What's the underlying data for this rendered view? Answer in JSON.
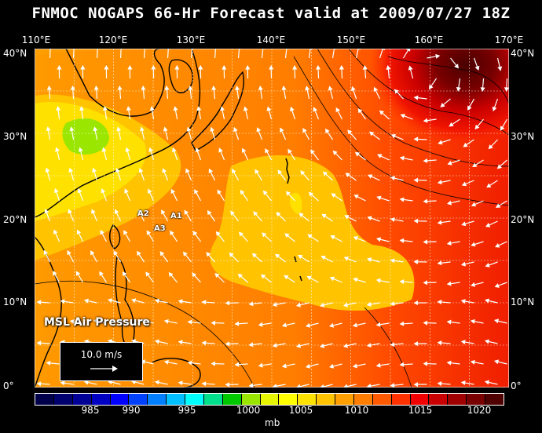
{
  "title": "FNMOC NOGAPS 66-Hr Forecast valid at 2009/07/27 18Z",
  "lon_labels": [
    "110°E",
    "120°E",
    "130°E",
    "140°E",
    "150°E",
    "160°E",
    "170°E"
  ],
  "lat_labels": [
    "40°N",
    "30°N",
    "20°N",
    "10°N",
    "0°"
  ],
  "field_label": "MSL Air Pressure",
  "reference_vector": {
    "label": "10.0 m/s"
  },
  "sites": [
    {
      "name": "A1",
      "lon": 127.5,
      "lat": 20.5
    },
    {
      "name": "A2",
      "lon": 124.0,
      "lat": 20.8
    },
    {
      "name": "A3",
      "lon": 125.0,
      "lat": 19.0
    }
  ],
  "colorbar": {
    "unit": "mb",
    "tick_labels": [
      "985",
      "990",
      "995",
      "1000",
      "1005",
      "1010",
      "1015",
      "1020"
    ],
    "colors": [
      "#00004a",
      "#00006e",
      "#000096",
      "#0000c3",
      "#0000ff",
      "#0040ff",
      "#0080ff",
      "#00c0ff",
      "#00ffff",
      "#00e08c",
      "#00c800",
      "#9be600",
      "#e6f500",
      "#ffff00",
      "#ffe100",
      "#ffc300",
      "#ffa000",
      "#ff7d00",
      "#ff5a00",
      "#ff3200",
      "#f00000",
      "#c80000",
      "#a00000",
      "#780000",
      "#500000"
    ]
  },
  "colors": {
    "background": "#000000",
    "land_outline": "#000000",
    "grid": "#ffffff",
    "wind_arrows": "#ffffff"
  }
}
